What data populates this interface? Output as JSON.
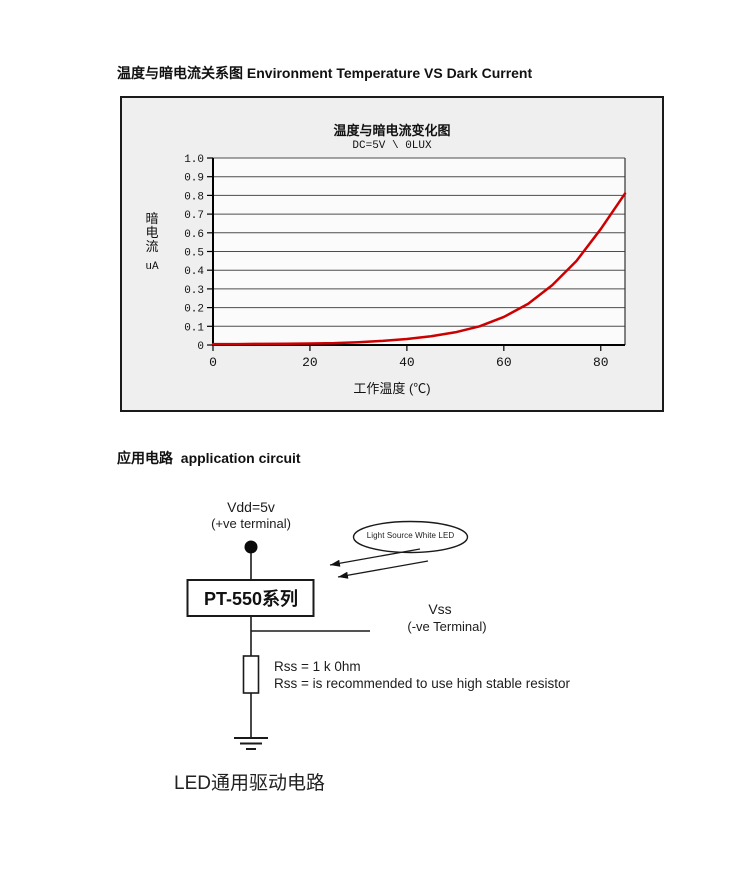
{
  "page": {
    "section1_title": "温度与暗电流关系图 Environment Temperature VS Dark Current",
    "section2_title": "应用电路  application circuit"
  },
  "chart_data": {
    "type": "line",
    "title": "温度与暗电流变化图",
    "subtitle": "DC=5V \\ 0LUX",
    "xlabel": "工作温度 (℃)",
    "ylabel": "暗电流",
    "ylabel_unit": "uA",
    "xlim": [
      0,
      85
    ],
    "ylim": [
      0,
      1.0
    ],
    "x_ticks": [
      0,
      20,
      40,
      60,
      80
    ],
    "y_ticks": [
      "1.0",
      "0.9",
      "0.8",
      "0.7",
      "0.6",
      "0.5",
      "0.4",
      "0.3",
      "0.2",
      "0.1",
      "0"
    ],
    "grid": "horizontal",
    "legend": "none",
    "line_color": "#cc0000",
    "series": [
      {
        "name": "dark current vs temperature",
        "x": [
          0,
          5,
          10,
          15,
          20,
          25,
          30,
          35,
          40,
          45,
          50,
          55,
          60,
          65,
          70,
          75,
          80,
          85
        ],
        "y": [
          0.005,
          0.005,
          0.006,
          0.007,
          0.008,
          0.01,
          0.015,
          0.022,
          0.032,
          0.047,
          0.068,
          0.1,
          0.15,
          0.22,
          0.32,
          0.45,
          0.62,
          0.81
        ]
      }
    ]
  },
  "circuit": {
    "vdd_label": "Vdd=5v",
    "vdd_sub": "(+ve terminal)",
    "box_label": "PT-550系列",
    "light_source_label": "Light Source White LED",
    "vss_label": "Vss",
    "vss_sub": "(-ve Terminal)",
    "rss_line1": "Rss = 1 k 0hm",
    "rss_line2": "Rss = is recommended to use high stable resistor",
    "caption": "LED通用驱动电路"
  }
}
